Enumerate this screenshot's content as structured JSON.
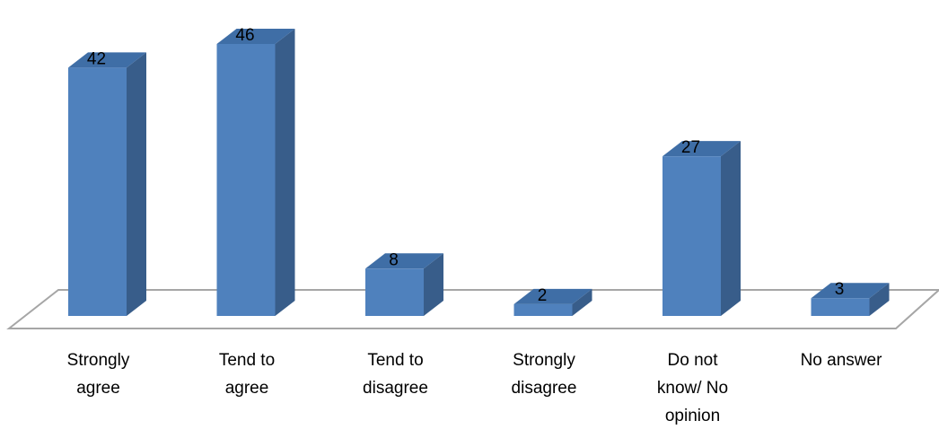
{
  "chart_data": {
    "type": "bar",
    "style": "3d-column",
    "categories": [
      [
        "Strongly",
        "agree"
      ],
      [
        "Tend to",
        "agree"
      ],
      [
        "Tend to",
        "disagree"
      ],
      [
        "Strongly",
        "disagree"
      ],
      [
        "Do not",
        "know/ No",
        "opinion"
      ],
      [
        "No answer"
      ]
    ],
    "values": [
      42,
      46,
      8,
      2,
      27,
      3
    ],
    "ylim": [
      0,
      46
    ],
    "grid": false,
    "legend": "none",
    "colors": {
      "bar_front": "#4f81bd",
      "bar_side": "#385d8a",
      "bar_top": "#3f6ea6",
      "floor": "#a6a6a6"
    }
  }
}
